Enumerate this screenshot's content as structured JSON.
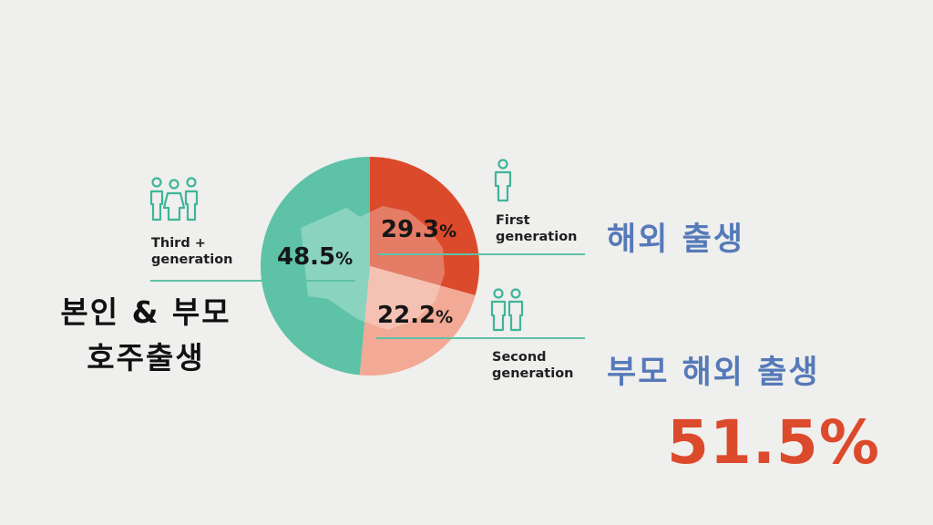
{
  "chart_data": {
    "type": "pie",
    "slices": [
      {
        "label": "First generation",
        "value": 29.3,
        "display": "29.3",
        "unit": "%",
        "color": "#dc4a2c"
      },
      {
        "label": "Second generation",
        "value": 22.2,
        "display": "22.2",
        "unit": "%",
        "color": "#f2a995"
      },
      {
        "label": "Third + generation",
        "value": 48.5,
        "display": "48.5",
        "unit": "%",
        "color": "#5ec2a7"
      }
    ]
  },
  "labels": {
    "first_gen_line1": "First",
    "first_gen_line2": "generation",
    "second_gen_line1": "Second",
    "second_gen_line2": "generation",
    "third_gen_line1": "Third +",
    "third_gen_line2": "generation"
  },
  "korean": {
    "first_gen": "해외 출생",
    "second_gen": "부모 해외 출생",
    "third_gen_line1": "본인 & 부모",
    "third_gen_line2": "호주출생"
  },
  "total": "51.5%",
  "icons": {
    "first": "single-person-icon",
    "second": "two-people-icon",
    "third": "three-people-icon"
  },
  "colors": {
    "accent_blue": "#5679b9",
    "accent_red": "#dc4a2c",
    "teal": "#5ec2a7"
  }
}
